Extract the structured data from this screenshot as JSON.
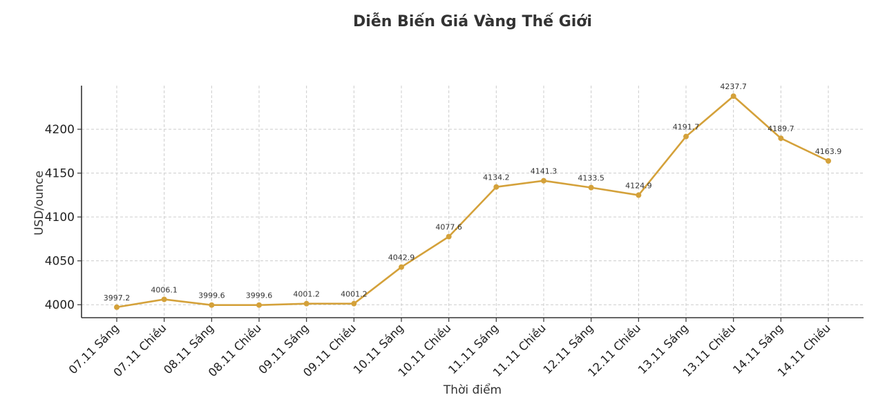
{
  "chart_data": {
    "type": "line",
    "title": "Diễn Biến Giá Vàng Thế Giới",
    "xlabel": "Thời điểm",
    "ylabel": "USD/ounce",
    "categories": [
      "07.11 Sáng",
      "07.11 Chiều",
      "08.11 Sáng",
      "08.11 Chiều",
      "09.11 Sáng",
      "09.11 Chiều",
      "10.11 Sáng",
      "10.11 Chiều",
      "11.11 Sáng",
      "11.11 Chiều",
      "12.11 Sáng",
      "12.11 Chiều",
      "13.11 Sáng",
      "13.11 Chiều",
      "14.11 Sáng",
      "14.11 Chiều"
    ],
    "series": [
      {
        "values": [
          3997.2,
          4006.1,
          3999.6,
          3999.6,
          4001.2,
          4001.2,
          4042.9,
          4077.6,
          4134.2,
          4141.3,
          4133.5,
          4124.9,
          4191.7,
          4237.7,
          4189.7,
          4163.9
        ],
        "color": "#d4a13a"
      }
    ],
    "data_labels": [
      "3997.2",
      "4006.1",
      "3999.6",
      "3999.6",
      "4001.2",
      "4001.2",
      "4042.9",
      "4077.6",
      "4134.2",
      "4141.3",
      "4133.5",
      "4124.9",
      "4191.7",
      "4237.7",
      "4189.7",
      "4163.9"
    ],
    "yticks": [
      4000,
      4050,
      4100,
      4150,
      4200
    ],
    "ytick_labels": [
      "4000",
      "4050",
      "4100",
      "4150",
      "4200"
    ],
    "ylim": [
      3985.2,
      4249.7
    ],
    "grid": true,
    "legend": "none"
  }
}
